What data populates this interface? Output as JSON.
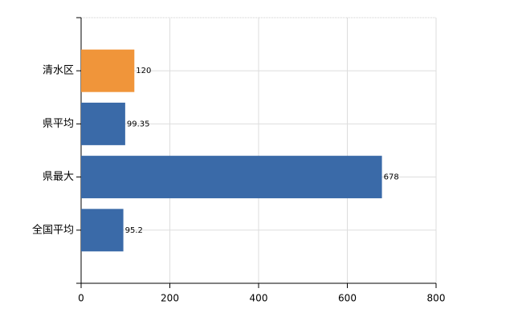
{
  "chart_data": {
    "type": "hbar",
    "categories": [
      "清水区",
      "県平均",
      "県最大",
      "全国平均"
    ],
    "values": [
      120,
      99.35,
      678,
      95.2
    ],
    "colors": [
      "#f0953a",
      "#3a6aa8",
      "#3a6aa8",
      "#3a6aa8"
    ],
    "xlim": [
      0,
      800
    ],
    "xticks": [
      0,
      200,
      400,
      600,
      800
    ],
    "grid": true
  }
}
